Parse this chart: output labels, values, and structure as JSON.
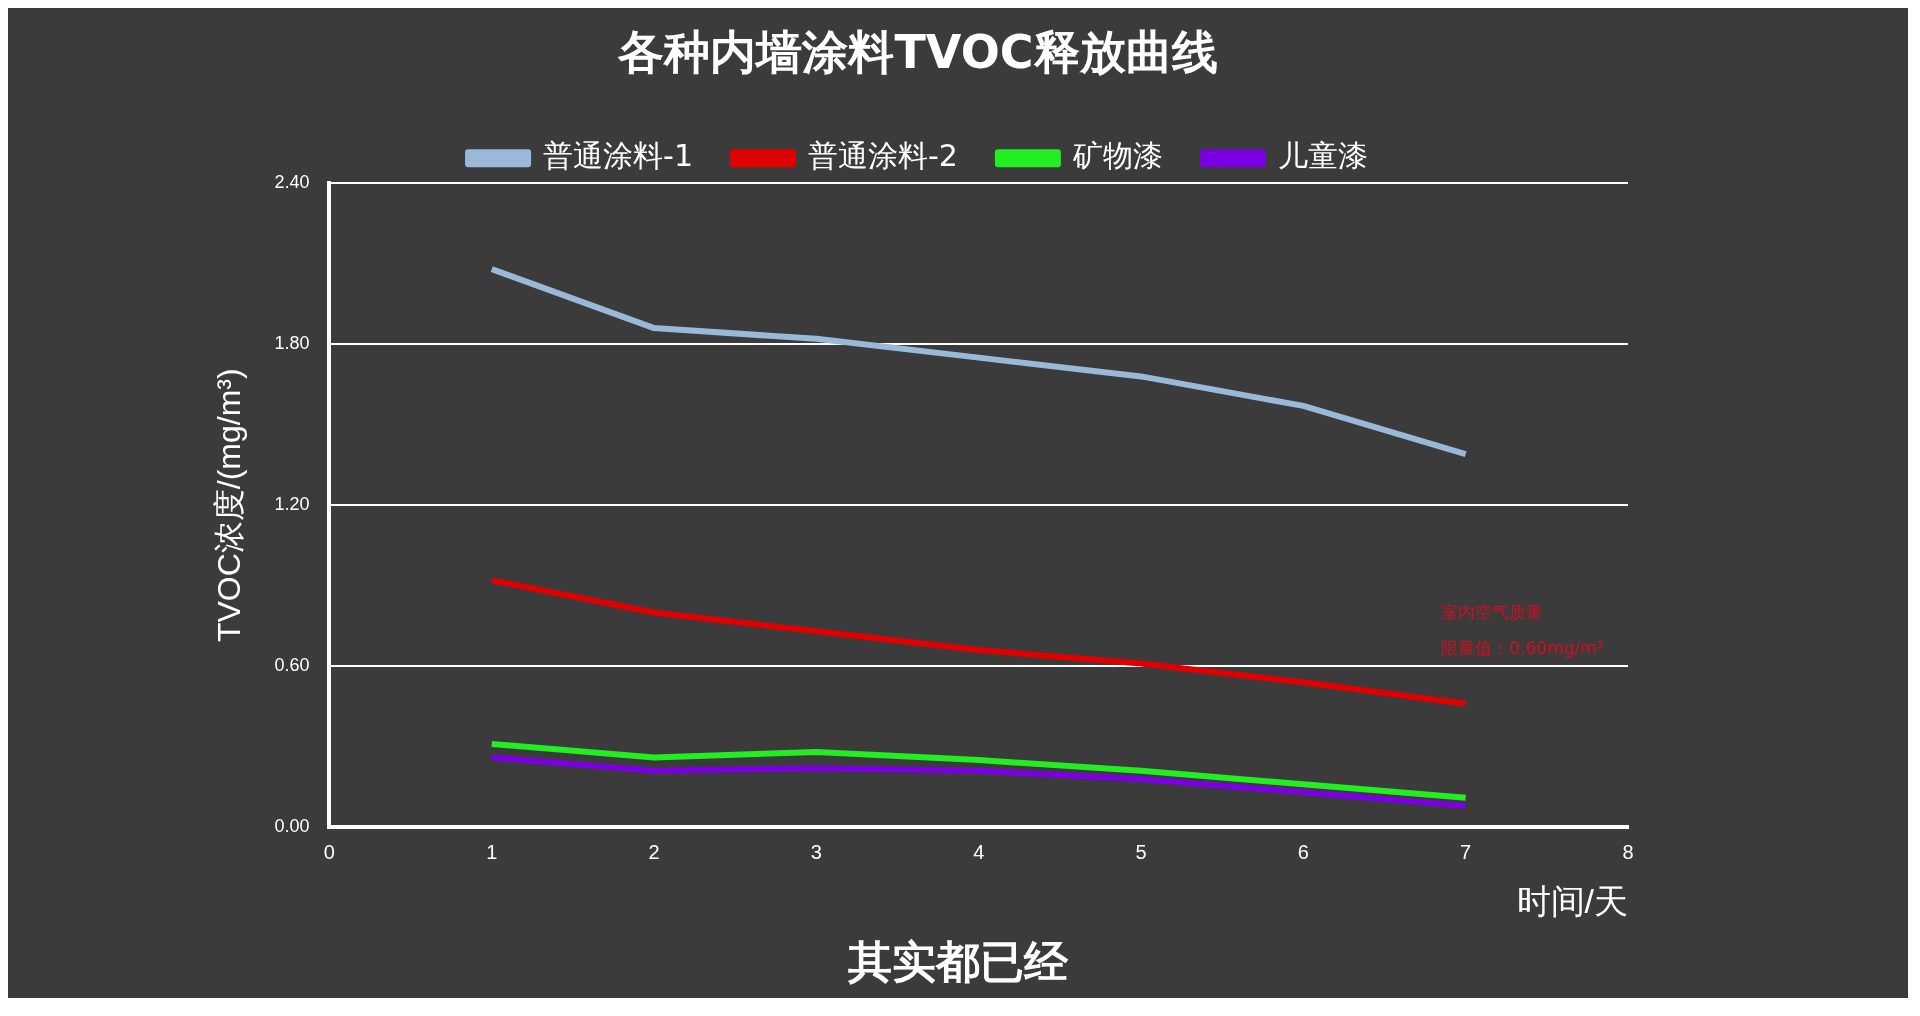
{
  "chart_data": {
    "type": "line",
    "title": "各种内墙涂料TVOC释放曲线",
    "xlabel": "时间/天",
    "ylabel": "TVOC浓度/(mg/m³)",
    "x": [
      1,
      2,
      3,
      4,
      5,
      6,
      7
    ],
    "series": [
      {
        "name": "普通涂料-1",
        "color": "#9ab8d8",
        "values": [
          2.08,
          1.86,
          1.82,
          1.75,
          1.68,
          1.57,
          1.39
        ]
      },
      {
        "name": "普通涂料-2",
        "color": "#e00000",
        "values": [
          0.92,
          0.8,
          0.73,
          0.66,
          0.61,
          0.54,
          0.46
        ]
      },
      {
        "name": "矿物漆",
        "color": "#22ee22",
        "values": [
          0.31,
          0.26,
          0.28,
          0.25,
          0.21,
          0.16,
          0.11
        ]
      },
      {
        "name": "儿童漆",
        "color": "#7a00e0",
        "values": [
          0.26,
          0.21,
          0.22,
          0.21,
          0.18,
          0.13,
          0.08
        ]
      }
    ],
    "xlim": [
      0,
      8
    ],
    "xticks": [
      0,
      1,
      2,
      3,
      4,
      5,
      6,
      7,
      8
    ],
    "ylim": [
      0,
      2.4
    ],
    "yticks": [
      {
        "value": 0,
        "label": "0.00"
      },
      {
        "value": 0.6,
        "label": "0.60"
      },
      {
        "value": 1.2,
        "label": "1.20"
      },
      {
        "value": 1.8,
        "label": "1.80"
      },
      {
        "value": 2.4,
        "label": "2.40"
      }
    ],
    "grid": "y",
    "legend": "top",
    "marker": "none",
    "line_style": "solid",
    "annotations": [
      "室内空气质量",
      "限量值：0.60mg/m³",
      "其实都已经"
    ]
  }
}
